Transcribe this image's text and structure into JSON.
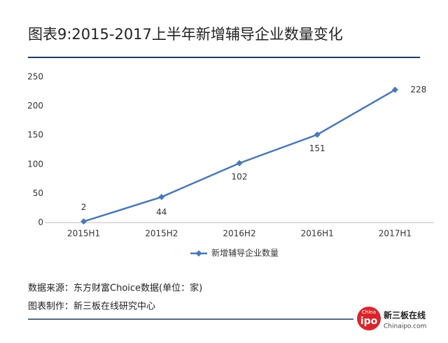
{
  "chart_data": {
    "type": "line",
    "title": "图表9:2015-2017上半年新增辅导企业数量变化",
    "categories": [
      "2015H1",
      "2015H2",
      "2016H2",
      "2016H1",
      "2017H1"
    ],
    "series": [
      {
        "name": "新增辅导企业数量",
        "color": "#4a78b4",
        "values": [
          2,
          44,
          102,
          151,
          228
        ]
      }
    ],
    "ylim": [
      0,
      250
    ],
    "yticks": [
      0,
      50,
      100,
      150,
      200,
      250
    ],
    "grid": false,
    "legend": "bottom"
  },
  "footer": {
    "source": "数据来源：东方财富Choice数据(单位：家)",
    "maker": "图表制作：新三板在线研究中心"
  },
  "logo": {
    "top": "China",
    "mark": "ipo",
    "name": "新三板在线",
    "site": "Chinaipo.com"
  }
}
